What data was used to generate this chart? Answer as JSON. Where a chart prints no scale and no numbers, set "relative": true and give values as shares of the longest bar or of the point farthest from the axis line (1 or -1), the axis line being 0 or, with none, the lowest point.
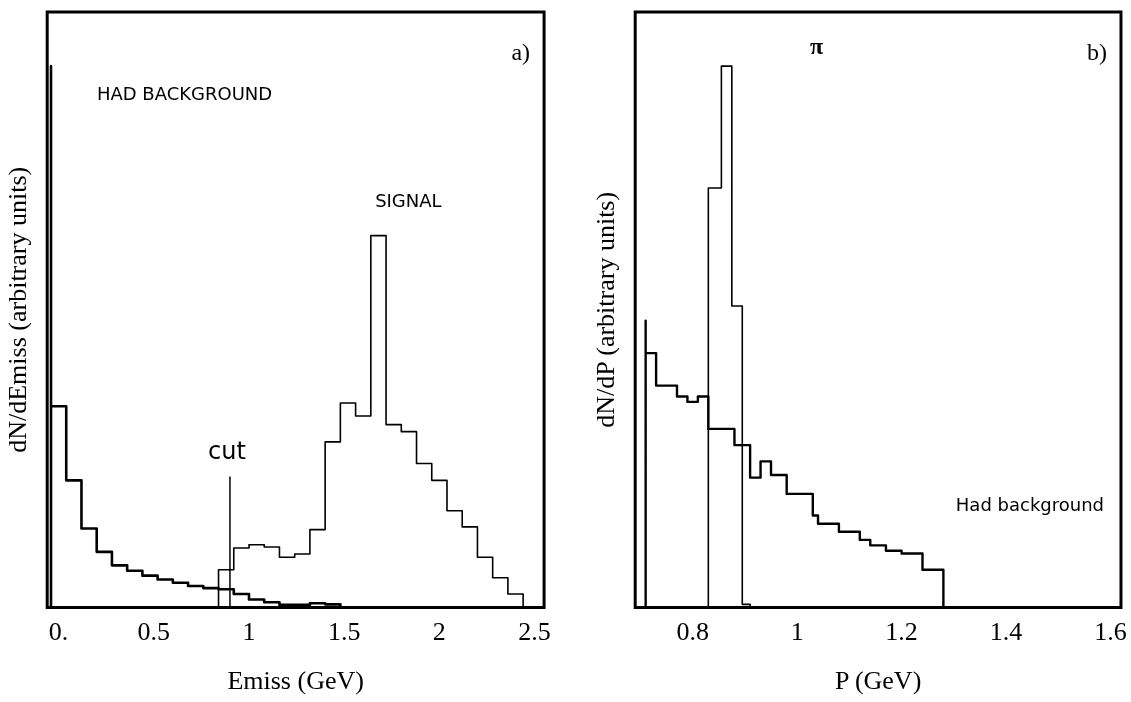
{
  "chart_data": [
    {
      "type": "step",
      "relative": true,
      "xlabel": "Emiss (GeV)",
      "ylabel": "dN/dEmiss (arbitrary units)",
      "xlim": [
        -0.06,
        2.55
      ],
      "xticks": [
        {
          "value": 0,
          "label": "0."
        },
        0.5,
        1,
        1.5,
        2,
        2.5
      ],
      "tick_labels": "x",
      "grid": false,
      "legend": false,
      "marker": "none",
      "annotations": [
        "a)"
      ],
      "ref_lines": [
        {
          "axis": "x",
          "value": 0.9,
          "label": "cut"
        }
      ],
      "series": [
        {
          "name": "HAD BACKGROUND",
          "color": "#000000",
          "x": [
            -0.04,
            -0.04,
            0.04,
            0.12,
            0.2,
            0.28,
            0.36,
            0.44,
            0.52,
            0.6,
            0.68,
            0.76,
            0.84,
            0.92,
            1.0,
            1.08,
            1.16,
            1.24,
            1.32,
            1.4,
            1.48,
            1.56
          ],
          "values": [
            0,
            1.0,
            0.372,
            0.235,
            0.146,
            0.103,
            0.078,
            0.068,
            0.059,
            0.052,
            0.046,
            0.04,
            0.036,
            0.034,
            0.025,
            0.015,
            0.01,
            0.005,
            0.005,
            0.008,
            0.006,
            0
          ]
        },
        {
          "name": "SIGNAL",
          "color": "#000000",
          "x": [
            0.84,
            0.84,
            0.92,
            1.0,
            1.08,
            1.16,
            1.24,
            1.32,
            1.4,
            1.48,
            1.56,
            1.64,
            1.72,
            1.8,
            1.88,
            1.96,
            2.04,
            2.12,
            2.2,
            2.28,
            2.36,
            2.44,
            2.52
          ],
          "values": [
            0,
            0.036,
            0.07,
            0.11,
            0.116,
            0.112,
            0.093,
            0.099,
            0.144,
            0.306,
            0.378,
            0.354,
            0.687,
            0.338,
            0.325,
            0.266,
            0.235,
            0.179,
            0.149,
            0.093,
            0.055,
            0.025,
            0
          ]
        }
      ]
    },
    {
      "type": "step",
      "relative": true,
      "xlabel": "P (GeV)",
      "ylabel": "dN/dP (arbitrary units)",
      "xlim": [
        0.69,
        1.62
      ],
      "xticks": [
        0.8,
        1,
        1.2,
        1.4,
        1.6
      ],
      "tick_labels": "x",
      "grid": false,
      "legend": false,
      "marker": "none",
      "annotations": [
        "b)"
      ],
      "series": [
        {
          "name": "π",
          "color": "#000000",
          "x": [
            0.83,
            0.83,
            0.855,
            0.875,
            0.895,
            0.91,
            0.925
          ],
          "values": [
            0,
            0.1,
            0.775,
            1.0,
            0.557,
            0.006,
            0
          ]
        },
        {
          "name": "Had background",
          "color": "#000000",
          "x": [
            0.71,
            0.71,
            0.73,
            0.77,
            0.79,
            0.81,
            0.83,
            0.88,
            0.91,
            0.93,
            0.95,
            0.98,
            1.03,
            1.04,
            1.08,
            1.12,
            1.14,
            1.17,
            1.2,
            1.24,
            1.28,
            1.3
          ],
          "values": [
            0,
            0.53,
            0.47,
            0.41,
            0.39,
            0.38,
            0.39,
            0.33,
            0.3,
            0.24,
            0.27,
            0.245,
            0.21,
            0.17,
            0.155,
            0.14,
            0.125,
            0.115,
            0.105,
            0.1,
            0.07,
            0
          ]
        }
      ]
    }
  ]
}
